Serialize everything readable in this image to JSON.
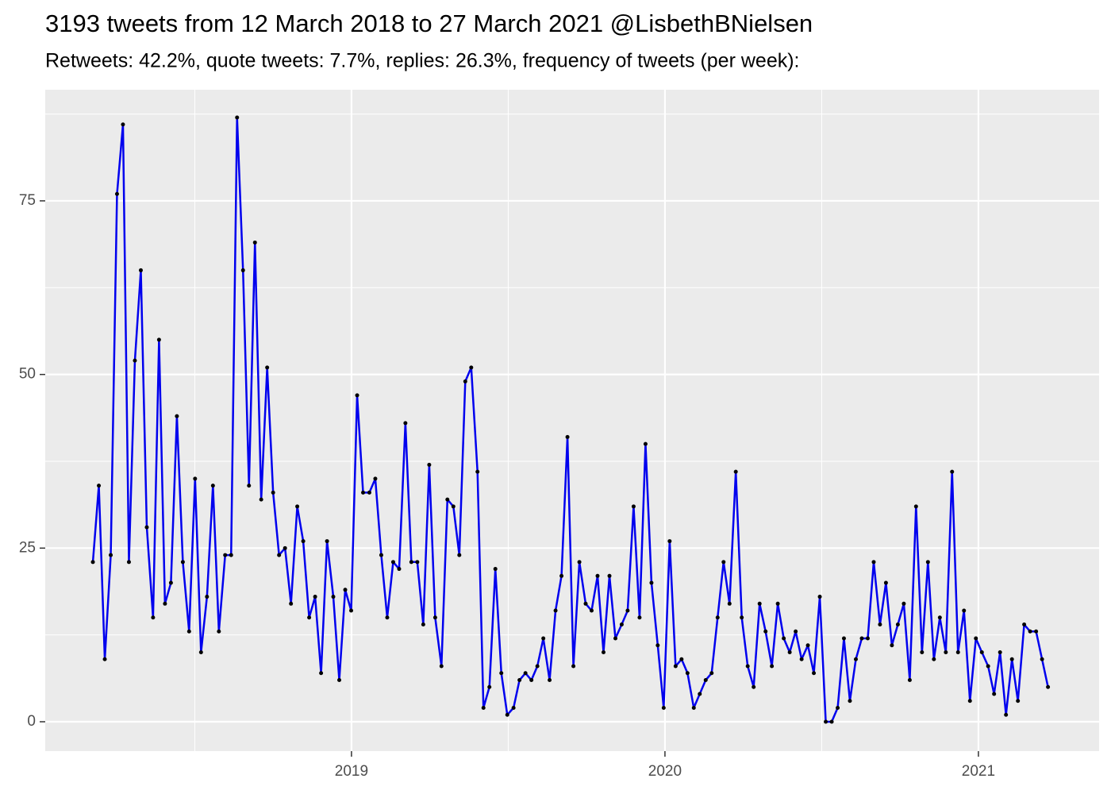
{
  "chart_data": {
    "type": "line",
    "title": "3193 tweets from 12 March 2018 to 27 March 2021 @LisbethBNielsen",
    "subtitle": "Retweets: 42.2%, quote tweets: 7.7%, replies: 26.3%, frequency of tweets (per week):",
    "x": [
      2018.175,
      2018.194,
      2018.213,
      2018.232,
      2018.252,
      2018.271,
      2018.29,
      2018.309,
      2018.328,
      2018.347,
      2018.367,
      2018.386,
      2018.405,
      2018.424,
      2018.443,
      2018.462,
      2018.482,
      2018.501,
      2018.52,
      2018.539,
      2018.558,
      2018.577,
      2018.597,
      2018.616,
      2018.635,
      2018.654,
      2018.673,
      2018.692,
      2018.712,
      2018.731,
      2018.75,
      2018.769,
      2018.788,
      2018.807,
      2018.827,
      2018.846,
      2018.865,
      2018.884,
      2018.903,
      2018.922,
      2018.942,
      2018.961,
      2018.98,
      2018.999,
      2019.018,
      2019.037,
      2019.057,
      2019.076,
      2019.095,
      2019.114,
      2019.133,
      2019.152,
      2019.172,
      2019.191,
      2019.21,
      2019.229,
      2019.248,
      2019.267,
      2019.287,
      2019.306,
      2019.325,
      2019.344,
      2019.363,
      2019.382,
      2019.402,
      2019.421,
      2019.44,
      2019.459,
      2019.478,
      2019.497,
      2019.517,
      2019.536,
      2019.555,
      2019.574,
      2019.593,
      2019.612,
      2019.632,
      2019.651,
      2019.67,
      2019.689,
      2019.708,
      2019.727,
      2019.747,
      2019.766,
      2019.785,
      2019.804,
      2019.823,
      2019.842,
      2019.862,
      2019.881,
      2019.9,
      2019.919,
      2019.938,
      2019.957,
      2019.977,
      2019.996,
      2020.015,
      2020.034,
      2020.053,
      2020.072,
      2020.092,
      2020.111,
      2020.13,
      2020.149,
      2020.168,
      2020.187,
      2020.206,
      2020.226,
      2020.245,
      2020.264,
      2020.283,
      2020.302,
      2020.321,
      2020.341,
      2020.36,
      2020.379,
      2020.398,
      2020.417,
      2020.436,
      2020.456,
      2020.475,
      2020.494,
      2020.513,
      2020.532,
      2020.551,
      2020.571,
      2020.59,
      2020.609,
      2020.628,
      2020.647,
      2020.666,
      2020.686,
      2020.705,
      2020.724,
      2020.743,
      2020.762,
      2020.781,
      2020.801,
      2020.82,
      2020.839,
      2020.858,
      2020.877,
      2020.896,
      2020.916,
      2020.935,
      2020.954,
      2020.973,
      2020.992,
      2021.011,
      2021.031,
      2021.05,
      2021.069,
      2021.088,
      2021.107,
      2021.126,
      2021.146,
      2021.165,
      2021.184,
      2021.203,
      2021.222
    ],
    "series": [
      {
        "color": "#0000ee",
        "point_color": "#000000",
        "values": [
          23,
          34,
          9,
          24,
          76,
          86,
          23,
          52,
          65,
          28,
          15,
          55,
          17,
          20,
          44,
          23,
          13,
          35,
          10,
          18,
          34,
          13,
          24,
          24,
          87,
          65,
          34,
          69,
          32,
          51,
          33,
          24,
          25,
          17,
          31,
          26,
          15,
          18,
          7,
          26,
          18,
          6,
          19,
          16,
          47,
          33,
          33,
          35,
          24,
          15,
          23,
          22,
          43,
          23,
          23,
          14,
          37,
          15,
          8,
          32,
          31,
          24,
          49,
          51,
          36,
          2,
          5,
          22,
          7,
          1,
          2,
          6,
          7,
          6,
          8,
          12,
          6,
          16,
          21,
          41,
          8,
          23,
          17,
          16,
          21,
          10,
          21,
          12,
          14,
          16,
          31,
          15,
          40,
          20,
          11,
          2,
          26,
          8,
          9,
          7,
          2,
          4,
          6,
          7,
          15,
          23,
          17,
          36,
          15,
          8,
          5,
          17,
          13,
          8,
          17,
          12,
          10,
          13,
          9,
          11,
          7,
          18,
          0,
          0,
          2,
          12,
          3,
          9,
          12,
          12,
          23,
          14,
          20,
          11,
          14,
          17,
          6,
          31,
          10,
          23,
          9,
          15,
          10,
          36,
          10,
          16,
          3,
          12,
          10,
          8,
          4,
          10,
          1,
          9,
          3,
          14,
          13,
          13,
          9,
          5
        ]
      }
    ],
    "xlim": [
      2018.023,
      2021.385
    ],
    "xticks": [
      2019,
      2020,
      2021
    ],
    "xminor": [
      2018.5,
      2019.5,
      2020.5
    ],
    "ylim": [
      -4.23,
      91.0
    ],
    "yticks": [
      0,
      25,
      50,
      75
    ],
    "yminor": [
      12.5,
      37.5,
      62.5,
      87.5
    ],
    "grid": true
  }
}
